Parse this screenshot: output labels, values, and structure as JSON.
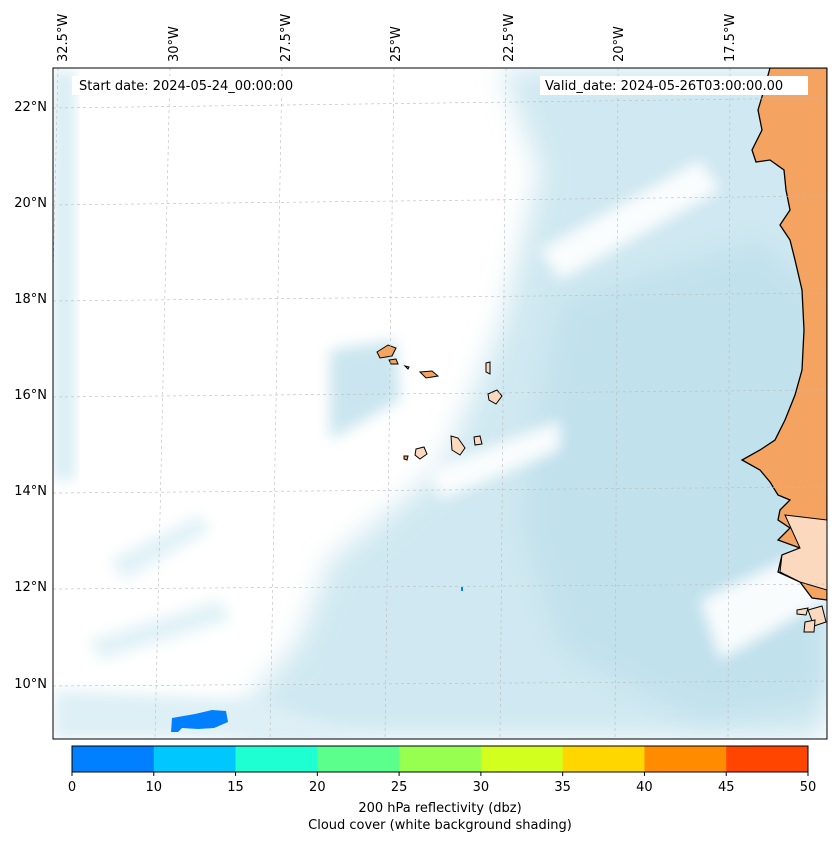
{
  "map": {
    "start_date_text": "Start date: 2024-05-24_00:00:00",
    "valid_date_text": "Valid_date: 2024-05-26T03:00:00.00",
    "lon_labels": [
      "32.5°W",
      "30°W",
      "27.5°W",
      "25°W",
      "22.5°W",
      "20°W",
      "17.5°W"
    ],
    "lat_labels": [
      "22°N",
      "20°N",
      "18°N",
      "16°N",
      "14°N",
      "12°N",
      "10°N"
    ],
    "colors": {
      "land": "#f4a460",
      "island_fill": "#fbd9bf",
      "cloud": "#a9d6e5",
      "coastline": "#000000",
      "gridline": "#bbbbbb"
    }
  },
  "colorbar": {
    "ticks": [
      "0",
      "10",
      "15",
      "20",
      "25",
      "30",
      "35",
      "40",
      "45",
      "50"
    ],
    "colors": [
      "#0080ff",
      "#00c8ff",
      "#1effd2",
      "#5aff8c",
      "#96ff50",
      "#d2ff1e",
      "#ffd700",
      "#ff8c00",
      "#ff4500"
    ],
    "label_line1": "200 hPa reflectivity (dbz)",
    "label_line2": "Cloud cover (white background shading)"
  }
}
